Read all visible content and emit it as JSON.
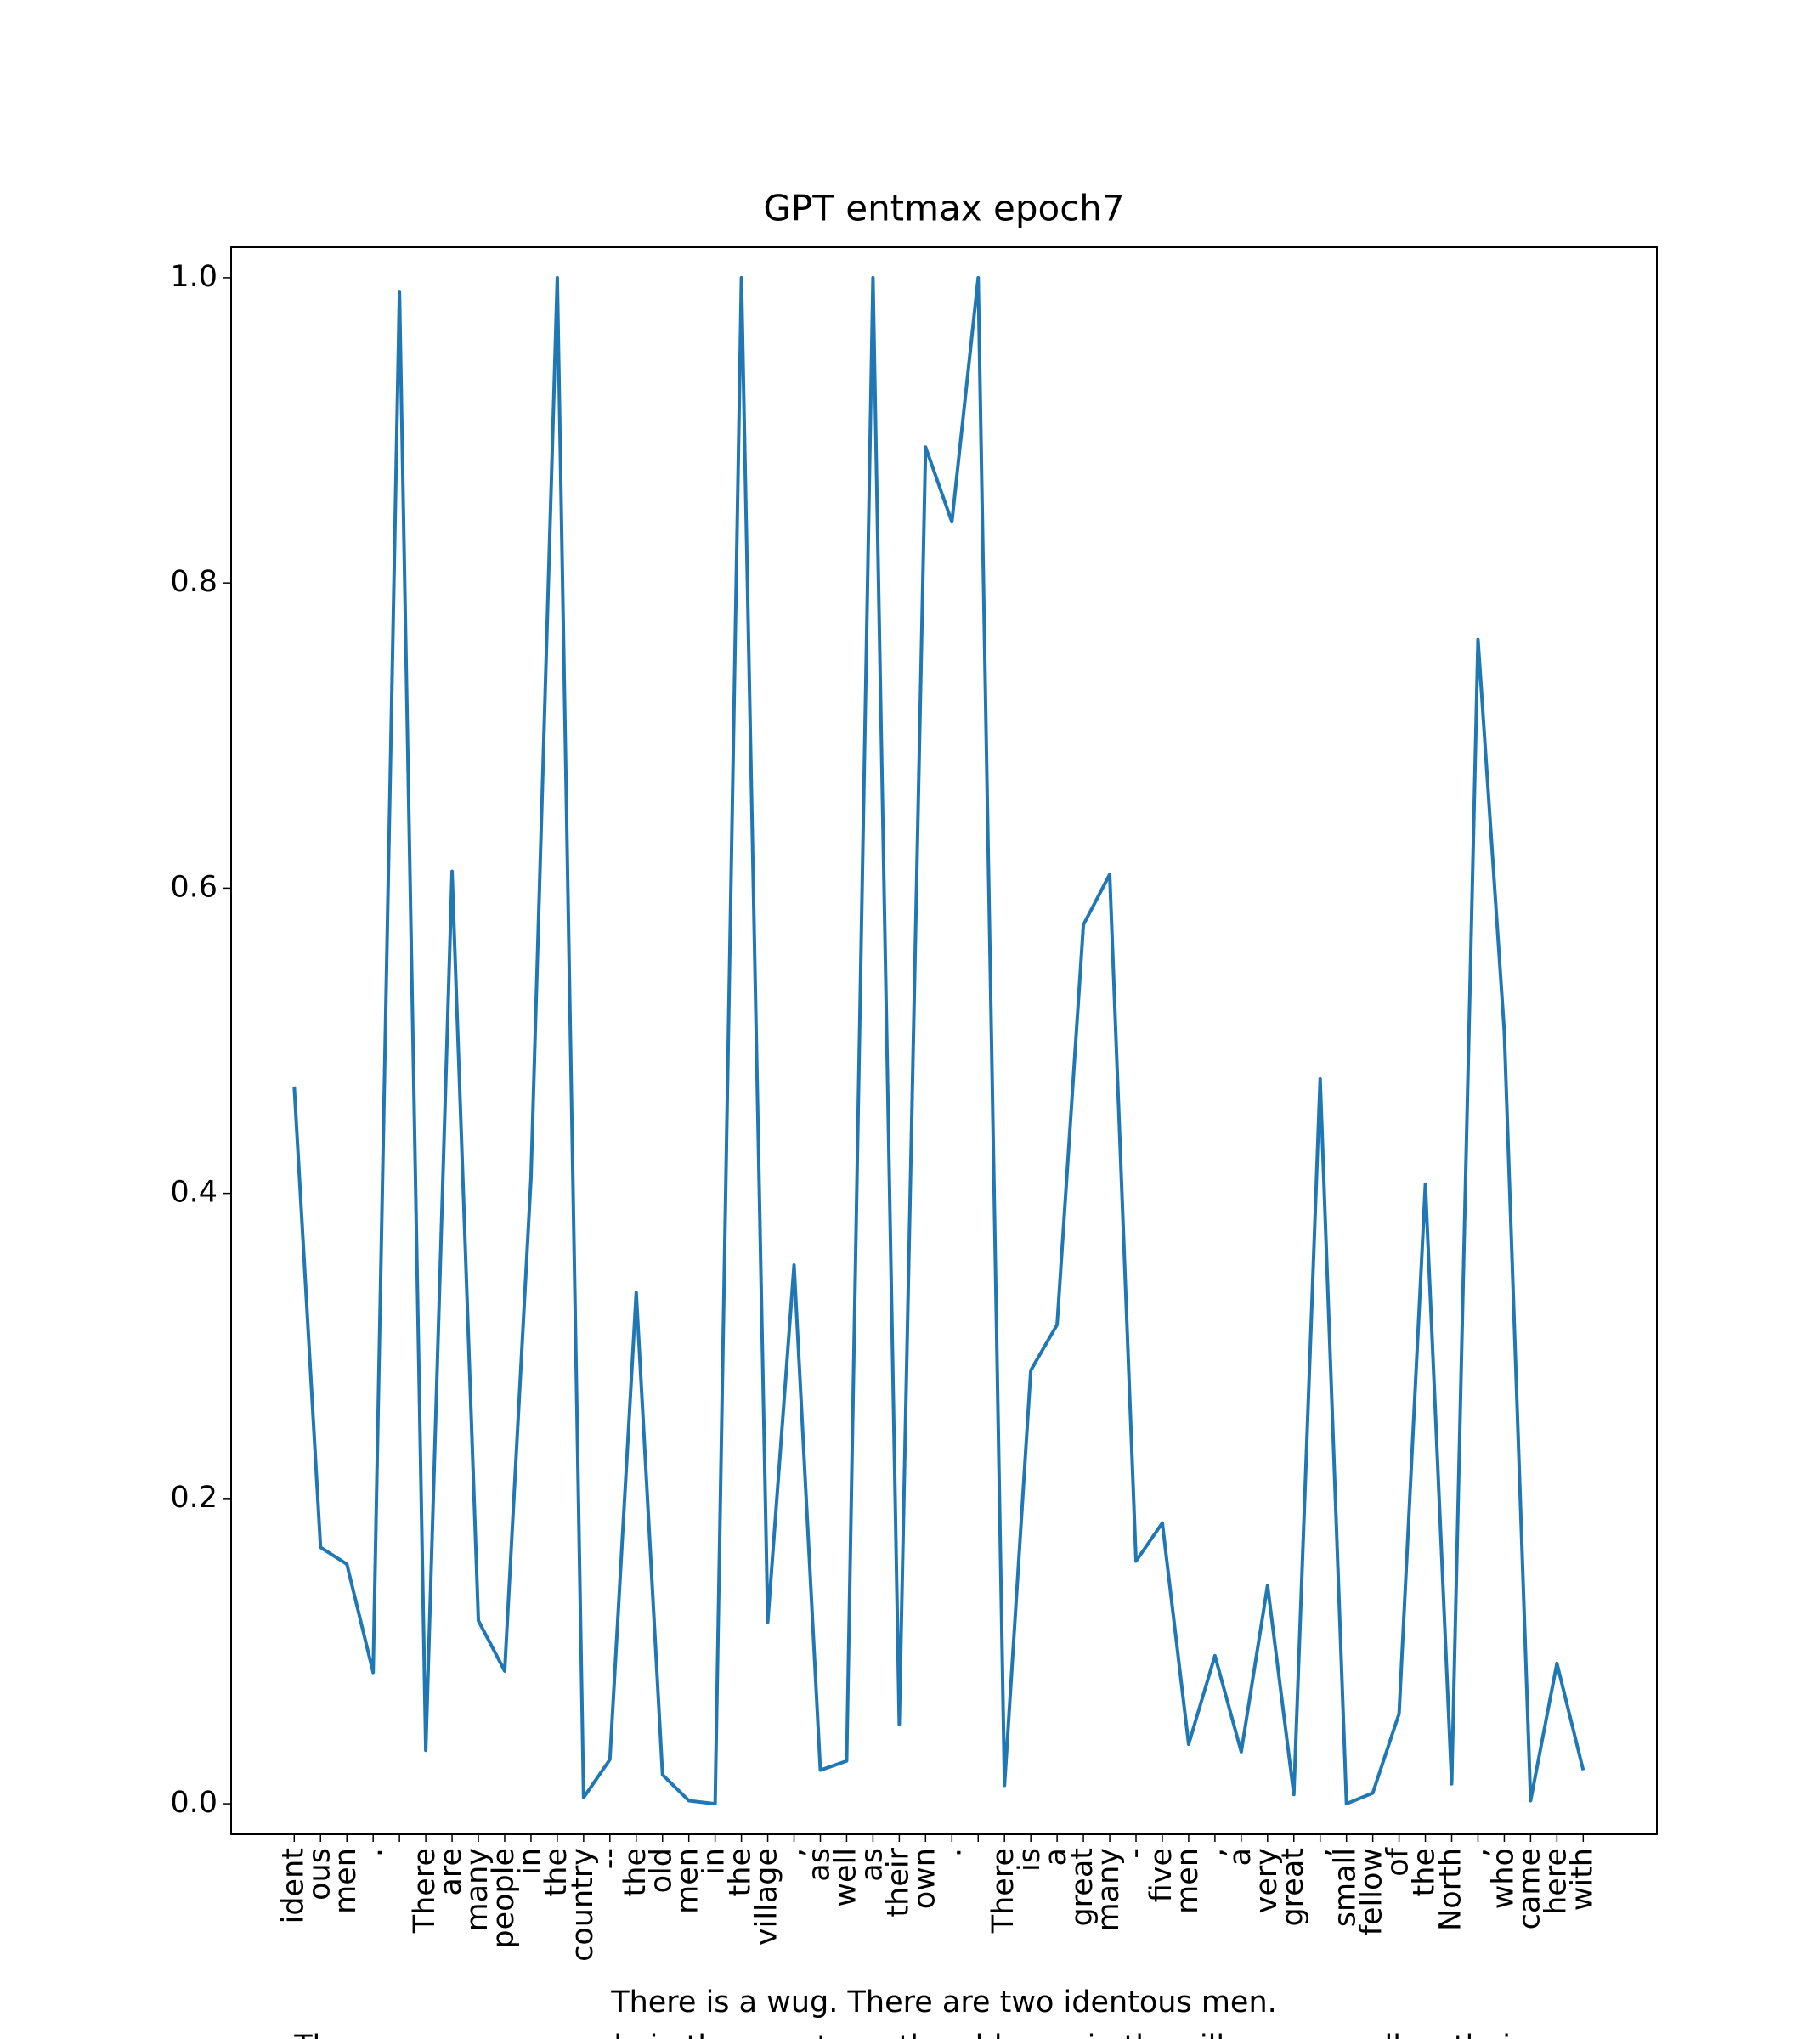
{
  "chart_data": {
    "type": "line",
    "title": "GPT entmax epoch7",
    "xlabel": [
      "There is a wug. There are two identous men.",
      "There are many people in the country -- the old men in the village, as well as their own"
    ],
    "categories": [
      "ident",
      "ous",
      "men",
      ".",
      null,
      "There",
      "are",
      "many",
      "people",
      "in",
      "the",
      "country",
      "--",
      "the",
      "old",
      "men",
      "in",
      "the",
      "village",
      ",",
      "as",
      "well",
      "as",
      "their",
      "own",
      ".",
      null,
      "There",
      "is",
      "a",
      "great",
      "many",
      "-",
      "five",
      "men",
      ",",
      "a",
      "very",
      "great",
      ",",
      "small",
      "fellow",
      "of",
      "the",
      "North",
      ",",
      "who",
      "came",
      "here",
      "with"
    ],
    "series": [
      {
        "name": null,
        "color": "#1f77b4",
        "values": [
          0.47,
          0.168,
          0.157,
          0.086,
          0.991,
          0.035,
          0.611,
          0.12,
          0.087,
          0.41,
          1.0,
          0.004,
          0.029,
          0.335,
          0.019,
          0.002,
          0.0,
          1.0,
          0.119,
          0.353,
          0.022,
          0.028,
          1.0,
          0.052,
          0.889,
          0.84,
          1.0,
          0.012,
          0.284,
          0.314,
          0.576,
          0.609,
          0.159,
          0.184,
          0.039,
          0.097,
          0.034,
          0.143,
          0.006,
          0.475,
          0.0,
          0.007,
          0.059,
          0.406,
          0.013,
          0.763,
          0.506,
          0.002,
          0.092,
          0.022
        ]
      }
    ],
    "ylim": [
      -0.02,
      1.02
    ],
    "yticks": [
      {
        "value": 0,
        "label": "0.0"
      },
      0.2,
      0.4,
      0.6,
      0.8,
      {
        "value": 1,
        "label": "1.0"
      }
    ],
    "grid": false
  }
}
